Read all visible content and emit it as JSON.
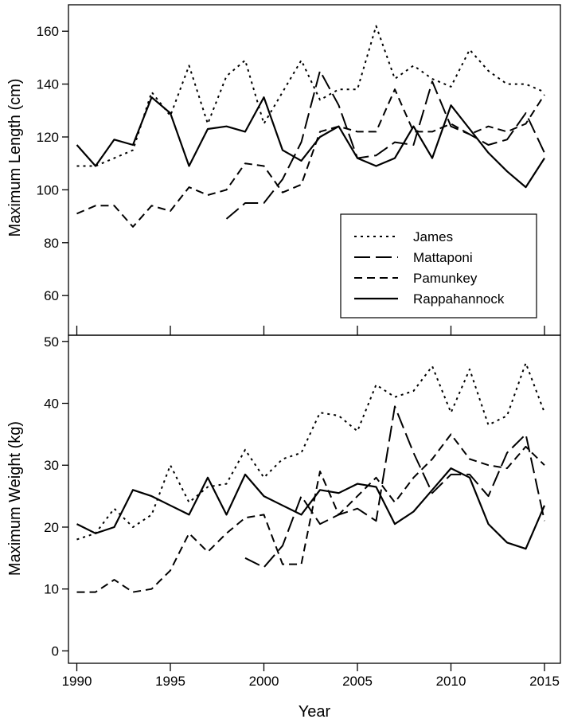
{
  "chart_data": [
    {
      "type": "line",
      "panel": "top",
      "xlabel": "",
      "ylabel": "Maximum Length (cm)",
      "xlim": [
        1990,
        2015
      ],
      "ylim": [
        45,
        170
      ],
      "yticks": [
        60,
        80,
        100,
        120,
        140,
        160
      ],
      "legend_position": "lower-right",
      "series": [
        {
          "name": "James",
          "style": "dotted",
          "points": [
            [
              1990,
              109
            ],
            [
              1991,
              109
            ],
            [
              1992,
              112
            ],
            [
              1993,
              115
            ],
            [
              1994,
              137
            ],
            [
              1995,
              128
            ],
            [
              1996,
              147
            ],
            [
              1997,
              125
            ],
            [
              1998,
              143
            ],
            [
              1999,
              149
            ],
            [
              2000,
              125
            ],
            [
              2001,
              137
            ],
            [
              2002,
              149
            ],
            [
              2003,
              134
            ],
            [
              2004,
              138
            ],
            [
              2005,
              138
            ],
            [
              2006,
              162
            ],
            [
              2007,
              142
            ],
            [
              2008,
              147
            ],
            [
              2009,
              142
            ],
            [
              2010,
              139
            ],
            [
              2011,
              153
            ],
            [
              2012,
              145
            ],
            [
              2013,
              140
            ],
            [
              2014,
              140
            ],
            [
              2015,
              137
            ]
          ]
        },
        {
          "name": "Mattaponi",
          "style": "long-dash",
          "points": [
            [
              1998,
              89
            ],
            [
              1999,
              95
            ],
            [
              2000,
              95
            ],
            [
              2001,
              104
            ],
            [
              2002,
              118
            ],
            [
              2003,
              145
            ],
            [
              2004,
              132
            ],
            [
              2005,
              112
            ],
            [
              2006,
              113
            ],
            [
              2007,
              118
            ],
            [
              2008,
              117
            ],
            [
              2009,
              141
            ],
            [
              2010,
              124
            ],
            [
              2011,
              121
            ],
            [
              2012,
              117
            ],
            [
              2013,
              119
            ],
            [
              2014,
              129
            ],
            [
              2015,
              114
            ]
          ]
        },
        {
          "name": "Pamunkey",
          "style": "dash",
          "points": [
            [
              1990,
              91
            ],
            [
              1991,
              94
            ],
            [
              1992,
              94
            ],
            [
              1993,
              86
            ],
            [
              1994,
              94
            ],
            [
              1995,
              92
            ],
            [
              1996,
              101
            ],
            [
              1997,
              98
            ],
            [
              1998,
              100
            ],
            [
              1999,
              110
            ],
            [
              2000,
              109
            ],
            [
              2001,
              99
            ],
            [
              2002,
              102
            ],
            [
              2003,
              122
            ],
            [
              2004,
              124
            ],
            [
              2005,
              122
            ],
            [
              2006,
              122
            ],
            [
              2007,
              138
            ],
            [
              2008,
              122
            ],
            [
              2009,
              122
            ],
            [
              2010,
              125
            ],
            [
              2011,
              121
            ],
            [
              2012,
              124
            ],
            [
              2013,
              122
            ],
            [
              2014,
              125
            ],
            [
              2015,
              136
            ]
          ]
        },
        {
          "name": "Rappahannock",
          "style": "solid",
          "points": [
            [
              1990,
              117
            ],
            [
              1991,
              109
            ],
            [
              1992,
              119
            ],
            [
              1993,
              117
            ],
            [
              1994,
              135
            ],
            [
              1995,
              129
            ],
            [
              1996,
              109
            ],
            [
              1997,
              123
            ],
            [
              1998,
              124
            ],
            [
              1999,
              122
            ],
            [
              2000,
              135
            ],
            [
              2001,
              115
            ],
            [
              2002,
              111
            ],
            [
              2003,
              120
            ],
            [
              2004,
              124
            ],
            [
              2005,
              112
            ],
            [
              2006,
              109
            ],
            [
              2007,
              112
            ],
            [
              2008,
              124
            ],
            [
              2009,
              112
            ],
            [
              2010,
              132
            ],
            [
              2011,
              123
            ],
            [
              2012,
              114
            ],
            [
              2013,
              107
            ],
            [
              2014,
              101
            ],
            [
              2015,
              112
            ]
          ]
        }
      ]
    },
    {
      "type": "line",
      "panel": "bottom",
      "xlabel": "Year",
      "ylabel": "Maximum Weight (kg)",
      "xlim": [
        1990,
        2015
      ],
      "ylim": [
        -2,
        51
      ],
      "yticks": [
        0,
        10,
        20,
        30,
        40,
        50
      ],
      "xticks": [
        1990,
        1995,
        2000,
        2005,
        2010,
        2015
      ],
      "series": [
        {
          "name": "James",
          "style": "dotted",
          "points": [
            [
              1990,
              18
            ],
            [
              1991,
              19
            ],
            [
              1992,
              23
            ],
            [
              1993,
              20
            ],
            [
              1994,
              22
            ],
            [
              1995,
              30
            ],
            [
              1996,
              24
            ],
            [
              1997,
              26.5
            ],
            [
              1998,
              27
            ],
            [
              1999,
              32.5
            ],
            [
              2000,
              28
            ],
            [
              2001,
              31
            ],
            [
              2002,
              32
            ],
            [
              2003,
              38.5
            ],
            [
              2004,
              38
            ],
            [
              2005,
              35.5
            ],
            [
              2006,
              43
            ],
            [
              2007,
              41
            ],
            [
              2008,
              42
            ],
            [
              2009,
              46
            ],
            [
              2010,
              38.5
            ],
            [
              2011,
              45.5
            ],
            [
              2012,
              36.5
            ],
            [
              2013,
              38
            ],
            [
              2014,
              46.5
            ],
            [
              2015,
              38.5
            ]
          ]
        },
        {
          "name": "Mattaponi",
          "style": "long-dash",
          "points": [
            [
              1999,
              15
            ],
            [
              2000,
              13.5
            ],
            [
              2001,
              17
            ],
            [
              2002,
              25
            ],
            [
              2003,
              20.5
            ],
            [
              2004,
              22
            ],
            [
              2005,
              23
            ],
            [
              2006,
              21
            ],
            [
              2007,
              39.5
            ],
            [
              2008,
              32
            ],
            [
              2009,
              25.5
            ],
            [
              2010,
              28.5
            ],
            [
              2011,
              28.5
            ],
            [
              2012,
              25
            ],
            [
              2013,
              32
            ],
            [
              2014,
              35
            ],
            [
              2015,
              21
            ]
          ]
        },
        {
          "name": "Pamunkey",
          "style": "dash",
          "points": [
            [
              1990,
              9.5
            ],
            [
              1991,
              9.5
            ],
            [
              1992,
              11.5
            ],
            [
              1993,
              9.5
            ],
            [
              1994,
              10
            ],
            [
              1995,
              13
            ],
            [
              1996,
              19
            ],
            [
              1997,
              16
            ],
            [
              1998,
              19
            ],
            [
              1999,
              21.5
            ],
            [
              2000,
              22
            ],
            [
              2001,
              14
            ],
            [
              2002,
              14
            ],
            [
              2003,
              29
            ],
            [
              2004,
              22
            ],
            [
              2005,
              25
            ],
            [
              2006,
              28
            ],
            [
              2007,
              24
            ],
            [
              2008,
              28
            ],
            [
              2009,
              31
            ],
            [
              2010,
              35
            ],
            [
              2011,
              31
            ],
            [
              2012,
              30
            ],
            [
              2013,
              29.5
            ],
            [
              2014,
              33
            ],
            [
              2015,
              30
            ]
          ]
        },
        {
          "name": "Rappahannock",
          "style": "solid",
          "points": [
            [
              1990,
              20.5
            ],
            [
              1991,
              19
            ],
            [
              1992,
              20
            ],
            [
              1993,
              26
            ],
            [
              1994,
              25
            ],
            [
              1995,
              23.5
            ],
            [
              1996,
              22
            ],
            [
              1997,
              28
            ],
            [
              1998,
              22
            ],
            [
              1999,
              28.5
            ],
            [
              2000,
              25
            ],
            [
              2001,
              23.5
            ],
            [
              2002,
              22
            ],
            [
              2003,
              26
            ],
            [
              2004,
              25.5
            ],
            [
              2005,
              27
            ],
            [
              2006,
              26.5
            ],
            [
              2007,
              20.5
            ],
            [
              2008,
              22.5
            ],
            [
              2009,
              26
            ],
            [
              2010,
              29.5
            ],
            [
              2011,
              28
            ],
            [
              2012,
              20.5
            ],
            [
              2013,
              17.5
            ],
            [
              2014,
              16.5
            ],
            [
              2015,
              23.5
            ]
          ]
        }
      ]
    }
  ]
}
